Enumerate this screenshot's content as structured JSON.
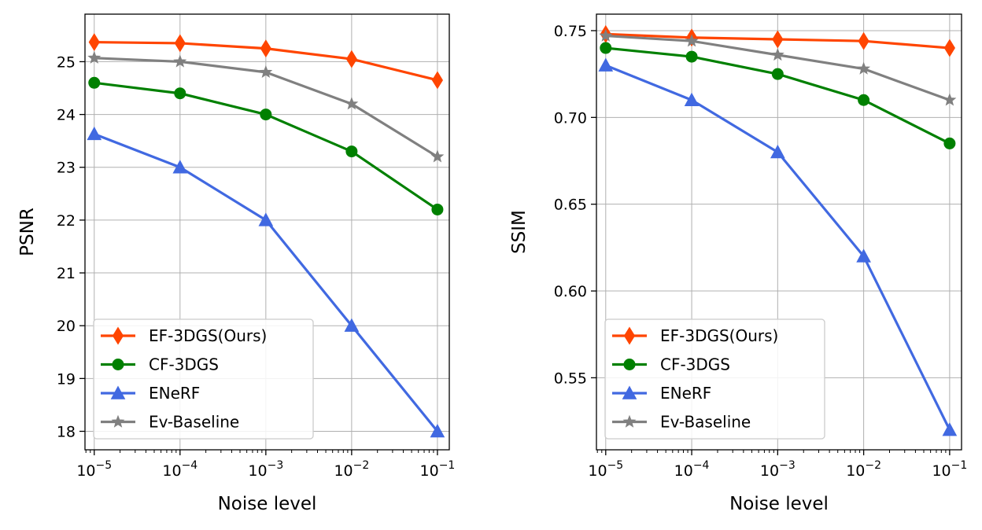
{
  "chart_data": [
    {
      "type": "line",
      "x": [
        1e-05,
        0.0001,
        0.001,
        0.01,
        0.1
      ],
      "xscale": "log",
      "xlabel": "Noise level",
      "ylabel": "PSNR",
      "xlim": [
        7.8e-06,
        0.1375
      ],
      "ylim": [
        17.65,
        25.9
      ],
      "xticks": [
        {
          "value": 1e-05,
          "base": "10",
          "exp": "−5"
        },
        {
          "value": 0.0001,
          "base": "10",
          "exp": "−4"
        },
        {
          "value": 0.001,
          "base": "10",
          "exp": "−3"
        },
        {
          "value": 0.01,
          "base": "10",
          "exp": "−2"
        },
        {
          "value": 0.1,
          "base": "10",
          "exp": "−1"
        }
      ],
      "yticks": [
        {
          "value": 18,
          "label": "18"
        },
        {
          "value": 19,
          "label": "19"
        },
        {
          "value": 20,
          "label": "20"
        },
        {
          "value": 21,
          "label": "21"
        },
        {
          "value": 22,
          "label": "22"
        },
        {
          "value": 23,
          "label": "23"
        },
        {
          "value": 24,
          "label": "24"
        },
        {
          "value": 25,
          "label": "25"
        }
      ],
      "grid": true,
      "legend": "lower-left",
      "series": [
        {
          "name": "EF-3DGS(Ours)",
          "color": "#ff4500",
          "marker": "thin-diamond",
          "values": [
            25.37,
            25.35,
            25.25,
            25.05,
            24.65
          ]
        },
        {
          "name": "CF-3DGS",
          "color": "#008000",
          "marker": "circle",
          "values": [
            24.6,
            24.4,
            24.0,
            23.3,
            22.2
          ]
        },
        {
          "name": "ENeRF",
          "color": "#4169e1",
          "marker": "triangle-up",
          "values": [
            23.63,
            23.0,
            22.0,
            20.0,
            18.0
          ]
        },
        {
          "name": "Ev-Baseline",
          "color": "#808080",
          "marker": "star",
          "values": [
            25.07,
            25.0,
            24.8,
            24.2,
            23.2
          ]
        }
      ]
    },
    {
      "type": "line",
      "x": [
        1e-05,
        0.0001,
        0.001,
        0.01,
        0.1
      ],
      "xscale": "log",
      "xlabel": "Noise level",
      "ylabel": "SSIM",
      "xlim": [
        7.8e-06,
        0.1375
      ],
      "ylim": [
        0.5085,
        0.7595
      ],
      "xticks": [
        {
          "value": 1e-05,
          "base": "10",
          "exp": "−5"
        },
        {
          "value": 0.0001,
          "base": "10",
          "exp": "−4"
        },
        {
          "value": 0.001,
          "base": "10",
          "exp": "−3"
        },
        {
          "value": 0.01,
          "base": "10",
          "exp": "−2"
        },
        {
          "value": 0.1,
          "base": "10",
          "exp": "−1"
        }
      ],
      "yticks": [
        {
          "value": 0.55,
          "label": "0.55"
        },
        {
          "value": 0.6,
          "label": "0.60"
        },
        {
          "value": 0.65,
          "label": "0.65"
        },
        {
          "value": 0.7,
          "label": "0.70"
        },
        {
          "value": 0.75,
          "label": "0.75"
        }
      ],
      "grid": true,
      "legend": "lower-left",
      "series": [
        {
          "name": "EF-3DGS(Ours)",
          "color": "#ff4500",
          "marker": "thin-diamond",
          "values": [
            0.748,
            0.746,
            0.745,
            0.744,
            0.74
          ]
        },
        {
          "name": "CF-3DGS",
          "color": "#008000",
          "marker": "circle",
          "values": [
            0.74,
            0.735,
            0.725,
            0.71,
            0.685
          ]
        },
        {
          "name": "ENeRF",
          "color": "#4169e1",
          "marker": "triangle-up",
          "values": [
            0.73,
            0.71,
            0.68,
            0.62,
            0.52
          ]
        },
        {
          "name": "Ev-Baseline",
          "color": "#808080",
          "marker": "star",
          "values": [
            0.747,
            0.744,
            0.736,
            0.728,
            0.71
          ]
        }
      ]
    }
  ]
}
